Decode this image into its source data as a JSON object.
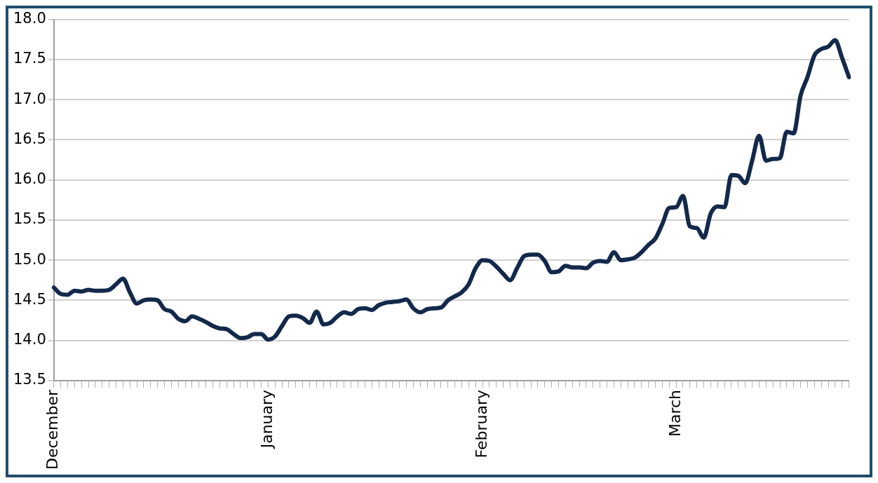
{
  "chart_data": {
    "type": "line",
    "categories": [
      "December",
      null,
      null,
      null,
      null,
      null,
      null,
      null,
      null,
      null,
      null,
      null,
      null,
      null,
      null,
      null,
      null,
      null,
      null,
      null,
      null,
      null,
      null,
      null,
      null,
      null,
      null,
      null,
      null,
      null,
      null,
      "January",
      null,
      null,
      null,
      null,
      null,
      null,
      null,
      null,
      null,
      null,
      null,
      null,
      null,
      null,
      null,
      null,
      null,
      null,
      null,
      null,
      null,
      null,
      null,
      null,
      null,
      null,
      null,
      null,
      null,
      null,
      "February",
      null,
      null,
      null,
      null,
      null,
      null,
      null,
      null,
      null,
      null,
      null,
      null,
      null,
      null,
      null,
      null,
      null,
      null,
      null,
      null,
      null,
      null,
      null,
      null,
      null,
      null,
      null,
      "March",
      null,
      null,
      null,
      null,
      null,
      null,
      null,
      null,
      null,
      null,
      null,
      null,
      null,
      null,
      null,
      null,
      null,
      null,
      null,
      null,
      null,
      null,
      null,
      null,
      null
    ],
    "series": [
      {
        "color": "#13294b",
        "values": [
          14.66,
          14.58,
          14.57,
          14.62,
          14.61,
          14.63,
          14.62,
          14.62,
          14.63,
          14.7,
          14.77,
          14.6,
          14.46,
          14.5,
          14.51,
          14.5,
          14.39,
          14.36,
          14.27,
          14.24,
          14.3,
          14.27,
          14.23,
          14.18,
          14.15,
          14.14,
          14.08,
          14.03,
          14.04,
          14.08,
          14.08,
          14.01,
          14.05,
          14.18,
          14.3,
          14.31,
          14.28,
          14.22,
          14.36,
          14.2,
          14.22,
          14.3,
          14.35,
          14.33,
          14.39,
          14.4,
          14.38,
          14.44,
          14.47,
          14.48,
          14.49,
          14.51,
          14.4,
          14.35,
          14.39,
          14.4,
          14.41,
          14.5,
          14.55,
          14.6,
          14.7,
          14.9,
          15.0,
          14.99,
          14.92,
          14.83,
          14.75,
          14.9,
          15.05,
          15.07,
          15.07,
          14.99,
          14.85,
          14.86,
          14.93,
          14.91,
          14.91,
          14.9,
          14.97,
          14.99,
          14.98,
          15.1,
          15.0,
          15.01,
          15.03,
          15.1,
          15.19,
          15.27,
          15.45,
          15.65,
          15.66,
          15.8,
          15.42,
          15.4,
          15.28,
          15.58,
          15.67,
          15.66,
          16.06,
          16.05,
          15.96,
          16.24,
          16.55,
          16.24,
          16.26,
          16.27,
          16.6,
          16.58,
          17.05,
          17.28,
          17.55,
          17.63,
          17.66,
          17.74,
          17.52,
          17.28
        ]
      }
    ],
    "ylim": [
      13.5,
      18
    ],
    "yticks": [
      {
        "value": 13.5,
        "label": "13.5"
      },
      {
        "value": 14,
        "label": "14.0"
      },
      {
        "value": 14.5,
        "label": "14.5"
      },
      {
        "value": 15,
        "label": "15.0"
      },
      {
        "value": 15.5,
        "label": "15.5"
      },
      {
        "value": 16,
        "label": "16.0"
      },
      {
        "value": 16.5,
        "label": "16.5"
      },
      {
        "value": 17,
        "label": "17.0"
      },
      {
        "value": 17.5,
        "label": "17.5"
      },
      {
        "value": 18,
        "label": "18.0"
      }
    ],
    "grid": "y",
    "marker": "none",
    "line_style": "solid"
  }
}
